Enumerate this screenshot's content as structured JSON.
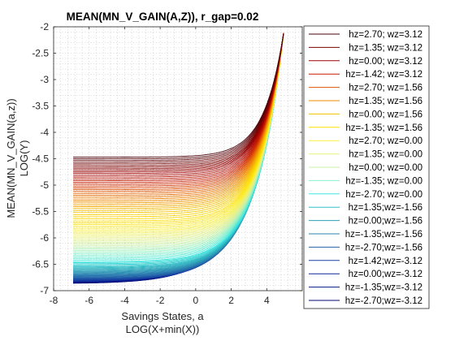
{
  "chart_data": {
    "type": "line",
    "title": "MEAN(MN_V_GAIN(A,Z)), r_gap=0.02",
    "xlabel": [
      "Savings States, a",
      "LOG(X+min(X))"
    ],
    "ylabel": [
      "MEAN(MN_V_GAIN(a,z))",
      "LOG(Y)"
    ],
    "xlim": [
      -8,
      6
    ],
    "ylim": [
      -7,
      -2
    ],
    "xticks": [
      -8,
      -6,
      -4,
      -2,
      0,
      2,
      4
    ],
    "xtick_labels": [
      "-8",
      "-6",
      "-4",
      "-2",
      "0",
      "2",
      "4"
    ],
    "yticks": [
      -7,
      -6.5,
      -6,
      -5.5,
      -5,
      -4.5,
      -4,
      -3.5,
      -3,
      -2.5,
      -2
    ],
    "ytick_labels": [
      "-7",
      "-6.5",
      "-6",
      "-5.5",
      "-5",
      "-4.5",
      "-4",
      "-3.5",
      "-3",
      "-2.5",
      "-2"
    ],
    "grid": "minor-dotted",
    "legend_position": "right-outside",
    "x_range": [
      -6.9,
      4.95
    ],
    "y_end": -2.12,
    "series": [
      {
        "name": "hz=2.70; wz=3.12",
        "color": "#4a0008",
        "y_start": -4.47,
        "knee": 0.9
      },
      {
        "name": "hz=1.35; wz=3.12",
        "color": "#7a0000",
        "y_start": -4.63,
        "knee": 0.9
      },
      {
        "name": "hz=0.00; wz=3.12",
        "color": "#a00000",
        "y_start": -4.78,
        "knee": 0.88
      },
      {
        "name": "hz=-1.42; wz=3.12",
        "color": "#c81a00",
        "y_start": -4.95,
        "knee": 0.87
      },
      {
        "name": "hz=2.70; wz=1.56",
        "color": "#e05500",
        "y_start": -5.12,
        "knee": 0.85
      },
      {
        "name": "hz=1.35; wz=1.56",
        "color": "#f08c00",
        "y_start": -5.3,
        "knee": 0.83
      },
      {
        "name": "hz=0.00; wz=1.56",
        "color": "#f5c000",
        "y_start": -5.48,
        "knee": 0.82
      },
      {
        "name": "hz=-1.35; wz=1.56",
        "color": "#ffe000",
        "y_start": -5.68,
        "knee": 0.8
      },
      {
        "name": "hz=2.70; wz=0.00",
        "color": "#f8f040",
        "y_start": -5.85,
        "knee": 0.78
      },
      {
        "name": "hz=1.35; wz=0.00",
        "color": "#e8f080",
        "y_start": -6.0,
        "knee": 0.76
      },
      {
        "name": "hz=0.00; wz=0.00",
        "color": "#c8f0a8",
        "y_start": -6.15,
        "knee": 0.74
      },
      {
        "name": "hz=-1.35; wz=0.00",
        "color": "#88f0c8",
        "y_start": -6.3,
        "knee": 0.72
      },
      {
        "name": "hz=-2.70; wz=0.00",
        "color": "#40e8e0",
        "y_start": -6.45,
        "knee": 0.7
      },
      {
        "name": "hz=1.35;wz=-1.56",
        "color": "#30c0c8",
        "y_start": -6.55,
        "knee": 0.68
      },
      {
        "name": "hz=0.00;wz=-1.56",
        "color": "#2ea0b8",
        "y_start": -6.63,
        "knee": 0.66
      },
      {
        "name": "hz=-1.35;wz=-1.56",
        "color": "#2a80b0",
        "y_start": -6.7,
        "knee": 0.64
      },
      {
        "name": "hz=-2.70;wz=-1.56",
        "color": "#2260a8",
        "y_start": -6.76,
        "knee": 0.62
      },
      {
        "name": "hz=1.42;wz=-3.12",
        "color": "#1840a0",
        "y_start": -6.8,
        "knee": 0.6
      },
      {
        "name": "hz=0.00;wz=-3.12",
        "color": "#102898",
        "y_start": -6.82,
        "knee": 0.58
      },
      {
        "name": "hz=-1.35;wz=-3.12",
        "color": "#081888",
        "y_start": -6.84,
        "knee": 0.56
      },
      {
        "name": "hz=-2.70;wz=-3.12",
        "color": "#000870",
        "y_start": -6.86,
        "knee": 0.54
      }
    ]
  }
}
